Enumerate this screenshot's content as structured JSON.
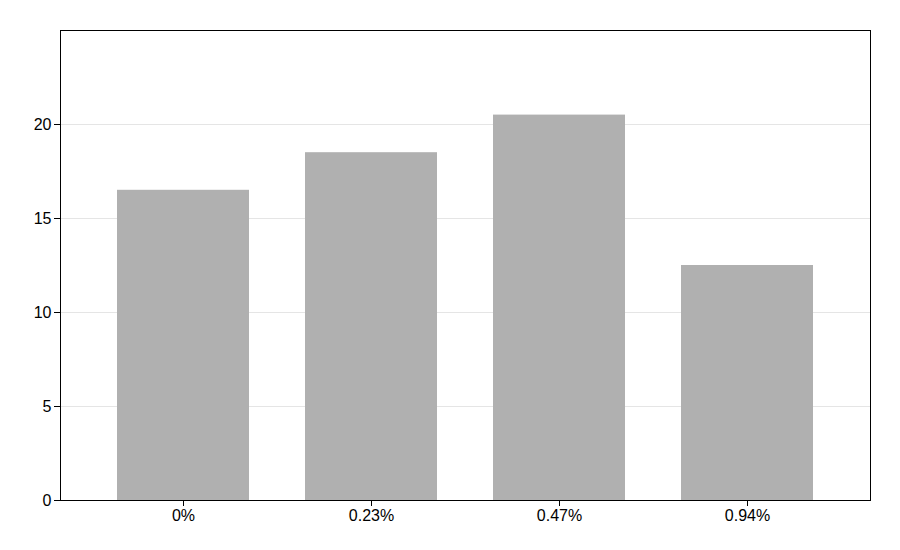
{
  "chart_data": {
    "type": "bar",
    "categories": [
      "0%",
      "0.23%",
      "0.47%",
      "0.94%"
    ],
    "values": [
      16.5,
      18.5,
      20.5,
      12.5
    ],
    "color": "#b0b0b0",
    "ylim": [
      0,
      25
    ],
    "yticks": [
      0,
      5,
      10,
      15,
      20
    ],
    "grid": true
  }
}
